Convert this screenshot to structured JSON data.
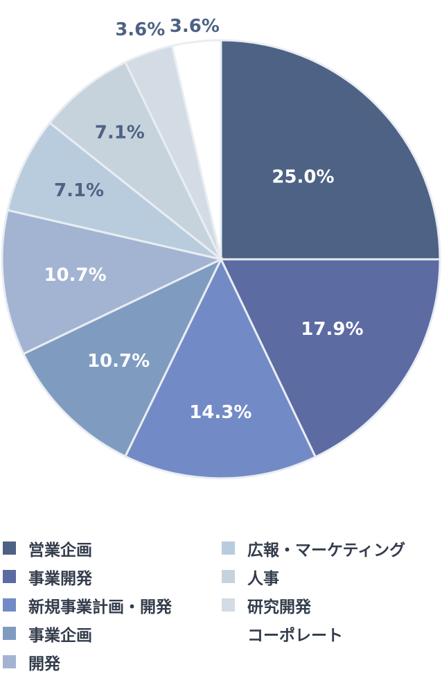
{
  "chart_data": {
    "type": "pie",
    "start_angle": "12 o'clock",
    "direction": "clockwise",
    "slices": [
      {
        "label": "営業企画",
        "value": 25.0,
        "value_label": "25.0%",
        "color": "#4d6284",
        "label_color": "#ffffff"
      },
      {
        "label": "事業開発",
        "value": 17.9,
        "value_label": "17.9%",
        "color": "#5d6ba3",
        "label_color": "#ffffff"
      },
      {
        "label": "新規事業計画・開発",
        "value": 14.3,
        "value_label": "14.3%",
        "color": "#728bc7",
        "label_color": "#ffffff"
      },
      {
        "label": "事業企画",
        "value": 10.7,
        "value_label": "10.7%",
        "color": "#7f9cc0",
        "label_color": "#ffffff"
      },
      {
        "label": "開発",
        "value": 10.7,
        "value_label": "10.7%",
        "color": "#a3b4d2",
        "label_color": "#ffffff"
      },
      {
        "label": "広報・マーケティング",
        "value": 7.1,
        "value_label": "7.1%",
        "color": "#b8ccdd",
        "label_color": "#4d6284"
      },
      {
        "label": "人事",
        "value": 7.1,
        "value_label": "7.1%",
        "color": "#c6d3dd",
        "label_color": "#4d6284"
      },
      {
        "label": "研究開発",
        "value": 3.6,
        "value_label": "3.6%",
        "color": "#d3dbe4",
        "label_color": "#4d6284"
      },
      {
        "label": "コーポレート",
        "value": 3.6,
        "value_label": "3.6%",
        "color": "#ffffff",
        "label_color": "#4d6284"
      }
    ],
    "legend_placement": "bottom"
  }
}
